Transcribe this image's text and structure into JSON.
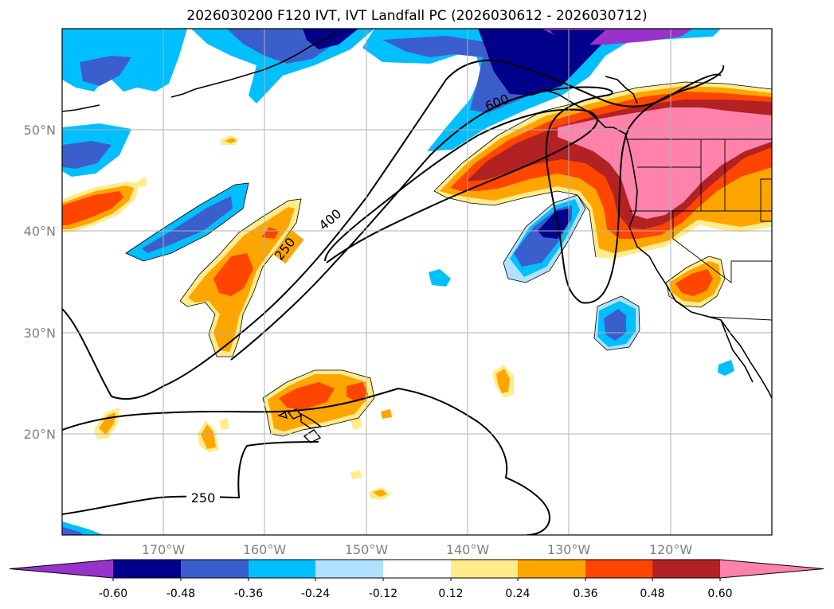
{
  "title": "2026030200 F120 IVT, IVT Landfall PC (2026030612 - 2026030712)",
  "map": {
    "lon_labels": [
      "170°W",
      "160°W",
      "150°W",
      "140°W",
      "130°W",
      "120°W"
    ],
    "lat_labels": [
      "50°N",
      "40°N",
      "30°N",
      "20°N"
    ],
    "ivt_contour_labels": [
      "250",
      "400",
      "600",
      "250"
    ]
  },
  "colorbar": {
    "colors": [
      "#9932cc",
      "#00008b",
      "#3a5fcd",
      "#00bfff",
      "#b0e2ff",
      "#ffffff",
      "#ffec8b",
      "#ffa500",
      "#ff4500",
      "#b22222",
      "#ff82ab"
    ],
    "tick_labels": [
      "-0.60",
      "-0.48",
      "-0.36",
      "-0.24",
      "-0.12",
      "0.12",
      "0.24",
      "0.36",
      "0.48",
      "0.60"
    ]
  },
  "colors": {
    "dark_blue": "#00008b",
    "blue": "#3a5fcd",
    "sky": "#00bfff",
    "light_blue": "#b0e2ff",
    "yellow": "#ffec8b",
    "orange": "#ffa500",
    "red_orange": "#ff4500",
    "dark_red": "#b22222",
    "pink": "#ff82ab",
    "purple": "#9932cc"
  }
}
